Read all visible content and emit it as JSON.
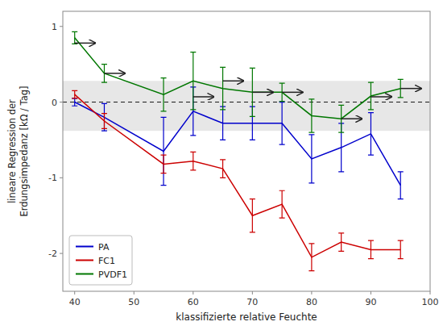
{
  "chart_data": {
    "type": "line",
    "x": [
      40,
      45,
      55,
      60,
      65,
      70,
      75,
      80,
      85,
      90,
      95
    ],
    "series": [
      {
        "name": "PA",
        "color": "#0000cc",
        "values": [
          0.0,
          -0.2,
          -0.65,
          -0.12,
          -0.28,
          -0.28,
          -0.28,
          -0.75,
          -0.6,
          -0.42,
          -1.1
        ],
        "errors": [
          0.05,
          0.18,
          0.45,
          0.32,
          0.22,
          0.22,
          0.28,
          0.32,
          0.32,
          0.28,
          0.18
        ]
      },
      {
        "name": "FC1",
        "color": "#cc0000",
        "values": [
          0.1,
          -0.25,
          -0.82,
          -0.78,
          -0.88,
          -1.5,
          -1.35,
          -2.05,
          -1.85,
          -1.95,
          -1.95
        ],
        "errors": [
          0.05,
          0.1,
          0.12,
          0.12,
          0.12,
          0.22,
          0.18,
          0.18,
          0.12,
          0.12,
          0.12
        ]
      },
      {
        "name": "PVDF1",
        "color": "#007700",
        "values": [
          0.85,
          0.38,
          0.1,
          0.28,
          0.18,
          0.13,
          0.13,
          -0.18,
          -0.22,
          0.08,
          0.18
        ],
        "errors": [
          0.08,
          0.12,
          0.22,
          0.38,
          0.28,
          0.32,
          0.12,
          0.22,
          0.18,
          0.18,
          0.12
        ]
      }
    ],
    "arrows": {
      "x": [
        40,
        45,
        60,
        65,
        70,
        75,
        85,
        90,
        95
      ],
      "y": [
        0.78,
        0.38,
        0.07,
        0.28,
        0.13,
        0.13,
        -0.22,
        0.07,
        0.18
      ],
      "length": 3.5
    },
    "band": {
      "ymin": -0.38,
      "ymax": 0.28
    },
    "hline": 0,
    "xlabel": "klassifizierte relative Feuchte",
    "ylabel": "lineare Regression der\nErdungsimpedanz [kΩ / Tag]",
    "xlim": [
      38,
      100
    ],
    "ylim": [
      -2.5,
      1.2
    ],
    "xticks": [
      40,
      50,
      60,
      70,
      80,
      90,
      100
    ],
    "yticks": [
      -2,
      -1,
      0,
      1
    ],
    "legend": "lower left",
    "grid": false
  }
}
